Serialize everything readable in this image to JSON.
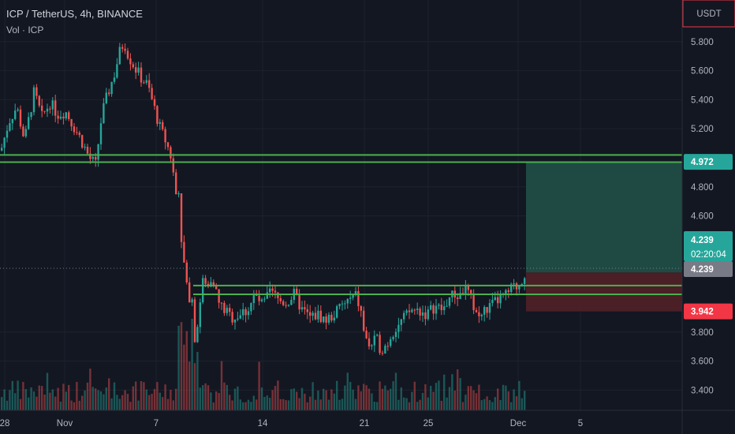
{
  "header": {
    "title": "ICP / TetherUS, 4h, BINANCE",
    "volume_label": "Vol · ICP"
  },
  "currency_button": "USDT",
  "colors": {
    "background": "#131722",
    "up": "#26a69a",
    "down": "#ef5350",
    "level_line": "#4caf50",
    "target_zone": "#1f4a44",
    "stop_zone": "#4a1f26",
    "price_tag": "#26a69a",
    "stop_tag": "#f23645",
    "current_tag": "#787b86"
  },
  "chart_data": {
    "type": "candlestick",
    "symbol": "ICP / TetherUS",
    "timeframe": "4h",
    "exchange": "BINANCE",
    "y_axis": {
      "ticks": [
        "5.800",
        "5.600",
        "5.400",
        "5.200",
        "4.800",
        "4.600",
        "3.800",
        "3.600",
        "3.400"
      ],
      "range": [
        3.3,
        5.85
      ]
    },
    "x_axis": {
      "ticks": [
        "28",
        "Nov",
        "7",
        "14",
        "21",
        "25",
        "Dec",
        "5"
      ]
    },
    "price_tags": {
      "target": "4.972",
      "last": "4.239",
      "countdown": "02:20:04",
      "current": "4.239",
      "stop": "3.942"
    },
    "horizontal_levels": [
      4.97,
      5.02,
      4.06,
      4.12
    ],
    "position": {
      "entry": 4.21,
      "target": 4.972,
      "stop": 3.942
    },
    "trend": [
      [
        0,
        5.05
      ],
      [
        10,
        5.25
      ],
      [
        20,
        5.35
      ],
      [
        30,
        5.12
      ],
      [
        42,
        5.45
      ],
      [
        52,
        5.28
      ],
      [
        62,
        5.38
      ],
      [
        72,
        5.3
      ],
      [
        82,
        5.32
      ],
      [
        92,
        5.22
      ],
      [
        102,
        5.12
      ],
      [
        112,
        5.0
      ],
      [
        120,
        4.95
      ],
      [
        128,
        5.3
      ],
      [
        136,
        5.45
      ],
      [
        144,
        5.58
      ],
      [
        150,
        5.72
      ],
      [
        156,
        5.8
      ],
      [
        162,
        5.7
      ],
      [
        170,
        5.62
      ],
      [
        178,
        5.55
      ],
      [
        186,
        5.5
      ],
      [
        194,
        5.35
      ],
      [
        202,
        5.2
      ],
      [
        210,
        5.1
      ],
      [
        216,
        5.0
      ],
      [
        222,
        4.75
      ],
      [
        226,
        4.8
      ],
      [
        230,
        4.3
      ],
      [
        234,
        4.25
      ],
      [
        238,
        3.95
      ],
      [
        242,
        4.1
      ],
      [
        246,
        3.75
      ],
      [
        250,
        3.9
      ],
      [
        256,
        4.15
      ],
      [
        262,
        4.1
      ],
      [
        268,
        4.2
      ],
      [
        276,
        4.0
      ],
      [
        284,
        3.95
      ],
      [
        292,
        3.9
      ],
      [
        302,
        3.92
      ],
      [
        312,
        3.95
      ],
      [
        322,
        4.05
      ],
      [
        332,
        3.98
      ],
      [
        342,
        4.08
      ],
      [
        352,
        4.02
      ],
      [
        362,
        4.0
      ],
      [
        372,
        4.06
      ],
      [
        382,
        3.95
      ],
      [
        392,
        3.9
      ],
      [
        402,
        3.92
      ],
      [
        412,
        3.88
      ],
      [
        422,
        3.92
      ],
      [
        432,
        3.98
      ],
      [
        442,
        4.02
      ],
      [
        450,
        4.05
      ],
      [
        456,
        3.95
      ],
      [
        462,
        3.75
      ],
      [
        468,
        3.7
      ],
      [
        476,
        3.75
      ],
      [
        482,
        3.68
      ],
      [
        490,
        3.72
      ],
      [
        496,
        3.8
      ],
      [
        504,
        3.85
      ],
      [
        512,
        3.9
      ],
      [
        520,
        3.95
      ],
      [
        530,
        3.95
      ],
      [
        540,
        3.92
      ],
      [
        550,
        3.98
      ],
      [
        560,
        3.95
      ],
      [
        570,
        4.05
      ],
      [
        580,
        4.05
      ],
      [
        590,
        4.1
      ],
      [
        598,
        4.0
      ],
      [
        606,
        3.9
      ],
      [
        614,
        3.95
      ],
      [
        622,
        3.98
      ],
      [
        630,
        4.02
      ],
      [
        640,
        4.05
      ],
      [
        648,
        4.1
      ],
      [
        656,
        4.12
      ],
      [
        662,
        4.18
      ],
      [
        666,
        4.24
      ]
    ]
  }
}
